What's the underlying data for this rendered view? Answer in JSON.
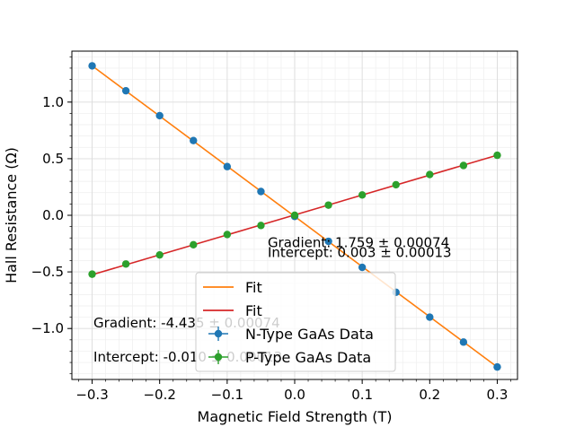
{
  "chart_data": {
    "type": "scatter",
    "xlabel": "Magnetic Field Strength (T)",
    "ylabel": "Hall Resistance (Ω)",
    "xlim": [
      -0.33,
      0.33
    ],
    "ylim": [
      -1.45,
      1.45
    ],
    "x_ticks": [
      -0.3,
      -0.2,
      -0.1,
      0.0,
      0.1,
      0.2,
      0.3
    ],
    "x_tick_labels": [
      "−0.3",
      "−0.2",
      "−0.1",
      "0.0",
      "0.1",
      "0.2",
      "0.3"
    ],
    "y_ticks": [
      -1.0,
      -0.5,
      0.0,
      0.5,
      1.0
    ],
    "y_tick_labels": [
      "−1.0",
      "−0.5",
      "0.0",
      "0.5",
      "1.0"
    ],
    "grid": true,
    "minor_grid": true,
    "legend_position": "bottom-center",
    "series": [
      {
        "name": "N-Type GaAs Data",
        "kind": "points",
        "color": "#1f77b4",
        "x": [
          -0.3,
          -0.25,
          -0.2,
          -0.15,
          -0.1,
          -0.05,
          0.0,
          0.05,
          0.1,
          0.15,
          0.2,
          0.25,
          0.3
        ],
        "y": [
          1.32,
          1.1,
          0.88,
          0.66,
          0.43,
          0.21,
          -0.01,
          -0.23,
          -0.46,
          -0.68,
          -0.9,
          -1.12,
          -1.34
        ]
      },
      {
        "name": "P-Type GaAs Data",
        "kind": "points",
        "color": "#2ca02c",
        "x": [
          -0.3,
          -0.25,
          -0.2,
          -0.15,
          -0.1,
          -0.05,
          0.0,
          0.05,
          0.1,
          0.15,
          0.2,
          0.25,
          0.3
        ],
        "y": [
          -0.52,
          -0.43,
          -0.35,
          -0.26,
          -0.17,
          -0.09,
          0.0,
          0.09,
          0.18,
          0.27,
          0.36,
          0.44,
          0.53
        ]
      },
      {
        "name": "Fit",
        "kind": "line",
        "color": "#ff7f0e",
        "x": [
          -0.3,
          0.3
        ],
        "y": [
          1.32,
          -1.34
        ]
      },
      {
        "name": "Fit",
        "kind": "line",
        "color": "#d62728",
        "x": [
          -0.3,
          0.3
        ],
        "y": [
          -0.525,
          0.531
        ]
      }
    ],
    "legend_order": [
      2,
      3,
      0,
      1
    ],
    "annotations": [
      {
        "text": "Gradient: 1.759 ± 0.00074",
        "x": -0.04,
        "y": -0.28
      },
      {
        "text": "Intercept: 0.003 ± 0.00013",
        "x": -0.04,
        "y": -0.37
      },
      {
        "text": "Gradient: -4.435 ± 0.00074",
        "x": -0.298,
        "y": -0.99
      },
      {
        "text": "Intercept: -0.010 ± 0.00013",
        "x": -0.298,
        "y": -1.29
      }
    ]
  }
}
